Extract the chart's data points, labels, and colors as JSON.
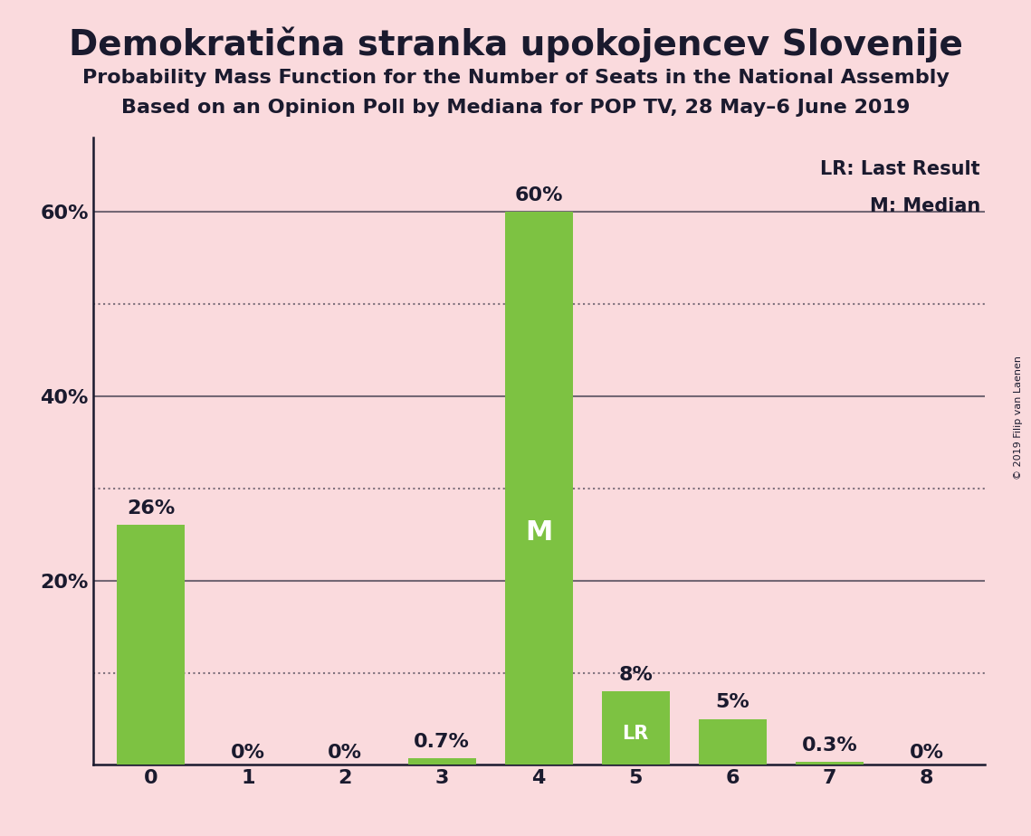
{
  "title": "Demokratična stranka upokojencev Slovenije",
  "subtitle1": "Probability Mass Function for the Number of Seats in the National Assembly",
  "subtitle2": "Based on an Opinion Poll by Mediana for POP TV, 28 May–6 June 2019",
  "copyright": "© 2019 Filip van Laenen",
  "categories": [
    0,
    1,
    2,
    3,
    4,
    5,
    6,
    7,
    8
  ],
  "values": [
    0.26,
    0.0,
    0.0,
    0.007,
    0.6,
    0.08,
    0.05,
    0.003,
    0.0
  ],
  "labels": [
    "26%",
    "0%",
    "0%",
    "0.7%",
    "60%",
    "8%",
    "5%",
    "0.3%",
    "0%"
  ],
  "bar_color": "#7dc242",
  "background_color": "#fadadd",
  "text_color": "#1a1a2e",
  "median_bar": 4,
  "lr_bar": 5,
  "legend_lr": "LR: Last Result",
  "legend_m": "M: Median",
  "ylim": [
    0,
    0.68
  ],
  "solid_yticks": [
    0.2,
    0.4,
    0.6
  ],
  "solid_ytick_labels": [
    "20%",
    "40%",
    "60%"
  ],
  "dotted_yticks": [
    0.1,
    0.3,
    0.5
  ],
  "title_fontsize": 28,
  "subtitle_fontsize": 16,
  "tick_fontsize": 16,
  "legend_fontsize": 15,
  "annotation_fontsize": 16,
  "m_fontsize": 22,
  "lr_fontsize": 15
}
